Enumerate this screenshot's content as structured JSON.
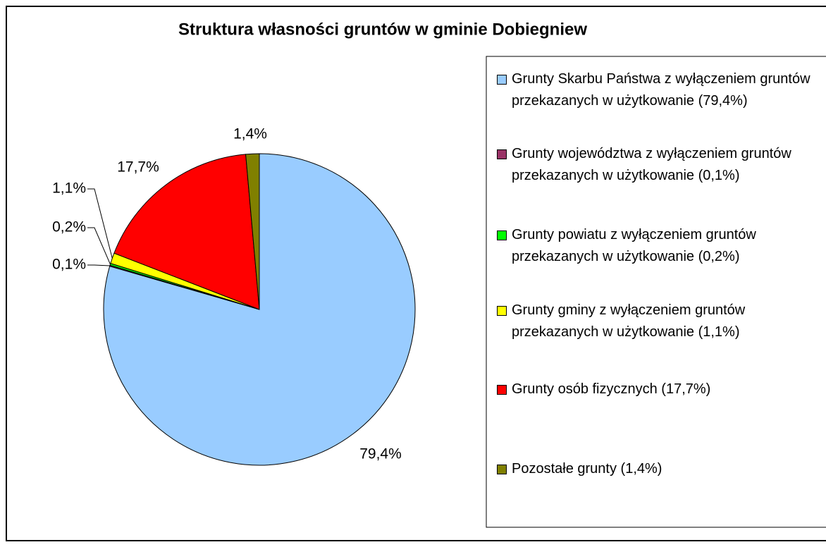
{
  "chart_data": {
    "type": "pie",
    "title": "Struktura własności gruntów w gminie Dobiegniew",
    "categories": [
      "Grunty Skarbu Państwa z wyłączeniem gruntów przekazanych w użytkowanie (79,4%)",
      "Grunty województwa z wyłączeniem gruntów przekazanych w użytkowanie (0,1%)",
      "Grunty powiatu z wyłączeniem gruntów przekazanych w użytkowanie (0,2%)",
      "Grunty gminy z wyłączeniem gruntów przekazanych w użytkowanie (1,1%)",
      "Grunty osób fizycznych (17,7%)",
      "Pozostałe grunty (1,4%)"
    ],
    "values": [
      79.4,
      0.1,
      0.2,
      1.1,
      17.7,
      1.4
    ],
    "value_labels": [
      "79,4%",
      "0,1%",
      "0,2%",
      "1,1%",
      "17,7%",
      "1,4%"
    ],
    "colors": [
      "#99ccff",
      "#993366",
      "#00ff00",
      "#ffff00",
      "#ff0000",
      "#808000"
    ],
    "legend": "right"
  }
}
